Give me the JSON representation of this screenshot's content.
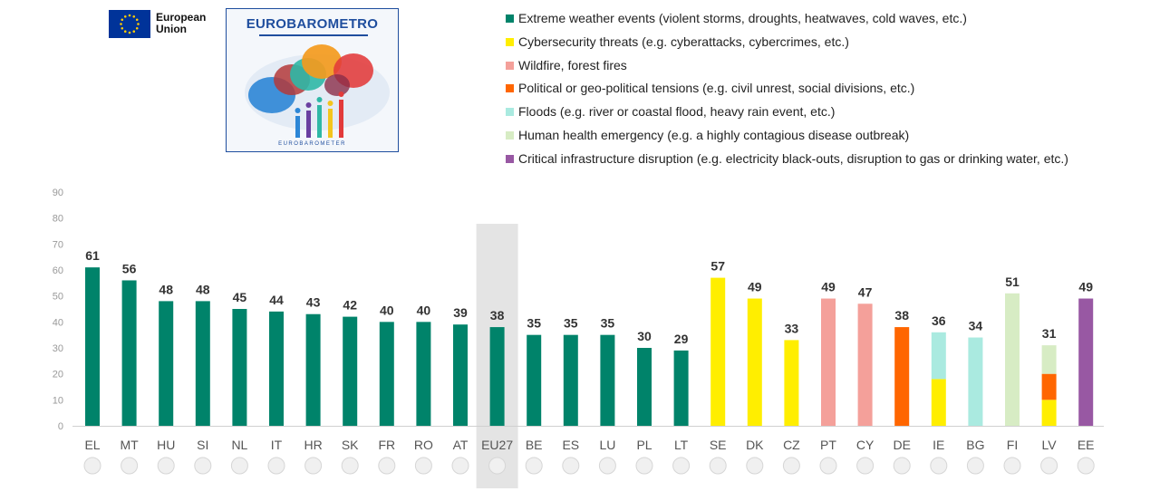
{
  "header": {
    "eu_logo_text_line1": "European",
    "eu_logo_text_line2": "Union",
    "eurobarometer_title": "EUROBAROMETRO",
    "eurobarometer_subtitle": "EUROBAROMETER"
  },
  "colors": {
    "extreme_weather": "#00836a",
    "cybersecurity": "#ffee00",
    "wildfire": "#f4a09a",
    "political": "#ff6600",
    "floods": "#aaeae0",
    "health": "#d7ecc4",
    "infrastructure": "#9858a3",
    "eu_highlight": "#e4e4e4",
    "eu_blue": "#003399",
    "eu_star": "#ffcc00",
    "eb_blue": "#1f4e9e"
  },
  "legend": [
    {
      "key": "extreme_weather",
      "label": "Extreme weather events (violent storms, droughts, heatwaves, cold waves, etc.)"
    },
    {
      "key": "cybersecurity",
      "label": "Cybersecurity threats (e.g. cyberattacks, cybercrimes, etc.)"
    },
    {
      "key": "wildfire",
      "label": "Wildfire, forest fires"
    },
    {
      "key": "political",
      "label": "Political or geo-political tensions (e.g. civil unrest, social divisions, etc.)"
    },
    {
      "key": "floods",
      "label": "Floods (e.g. river or coastal flood, heavy rain event, etc.)"
    },
    {
      "key": "health",
      "label": "Human health emergency (e.g. a highly contagious disease outbreak)"
    },
    {
      "key": "infrastructure",
      "label": "Critical infrastructure disruption (e.g. electricity black-outs, disruption to gas or drinking water, etc.)"
    }
  ],
  "chart_data": {
    "type": "bar",
    "stacked": true,
    "ylim": [
      0,
      90
    ],
    "yticks": [
      0,
      10,
      20,
      30,
      40,
      50,
      60,
      70,
      80,
      90
    ],
    "grid": false,
    "highlight_category": "EU27",
    "categories": [
      "EL",
      "MT",
      "HU",
      "SI",
      "NL",
      "IT",
      "HR",
      "SK",
      "FR",
      "RO",
      "AT",
      "EU27",
      "BE",
      "ES",
      "LU",
      "PL",
      "LT",
      "SE",
      "DK",
      "CZ",
      "PT",
      "CY",
      "DE",
      "IE",
      "BG",
      "FI",
      "LV",
      "EE"
    ],
    "totals": [
      61,
      56,
      48,
      48,
      45,
      44,
      43,
      42,
      40,
      40,
      39,
      38,
      35,
      35,
      35,
      30,
      29,
      57,
      49,
      33,
      49,
      47,
      38,
      36,
      34,
      51,
      31,
      49
    ],
    "segments": [
      [
        [
          "extreme_weather",
          61
        ]
      ],
      [
        [
          "extreme_weather",
          56
        ]
      ],
      [
        [
          "extreme_weather",
          48
        ]
      ],
      [
        [
          "extreme_weather",
          48
        ]
      ],
      [
        [
          "extreme_weather",
          45
        ]
      ],
      [
        [
          "extreme_weather",
          44
        ]
      ],
      [
        [
          "extreme_weather",
          43
        ]
      ],
      [
        [
          "extreme_weather",
          42
        ]
      ],
      [
        [
          "extreme_weather",
          40
        ]
      ],
      [
        [
          "extreme_weather",
          40
        ]
      ],
      [
        [
          "extreme_weather",
          39
        ]
      ],
      [
        [
          "extreme_weather",
          38
        ]
      ],
      [
        [
          "extreme_weather",
          35
        ]
      ],
      [
        [
          "extreme_weather",
          35
        ]
      ],
      [
        [
          "extreme_weather",
          35
        ]
      ],
      [
        [
          "extreme_weather",
          30
        ]
      ],
      [
        [
          "extreme_weather",
          29
        ]
      ],
      [
        [
          "cybersecurity",
          57
        ]
      ],
      [
        [
          "cybersecurity",
          49
        ]
      ],
      [
        [
          "cybersecurity",
          33
        ]
      ],
      [
        [
          "wildfire",
          49
        ]
      ],
      [
        [
          "wildfire",
          47
        ]
      ],
      [
        [
          "political",
          38
        ]
      ],
      [
        [
          "cybersecurity",
          18
        ],
        [
          "floods",
          18
        ]
      ],
      [
        [
          "floods",
          34
        ]
      ],
      [
        [
          "health",
          51
        ]
      ],
      [
        [
          "cybersecurity",
          10
        ],
        [
          "political",
          10
        ],
        [
          "health",
          11
        ]
      ],
      [
        [
          "infrastructure",
          49
        ]
      ]
    ]
  }
}
